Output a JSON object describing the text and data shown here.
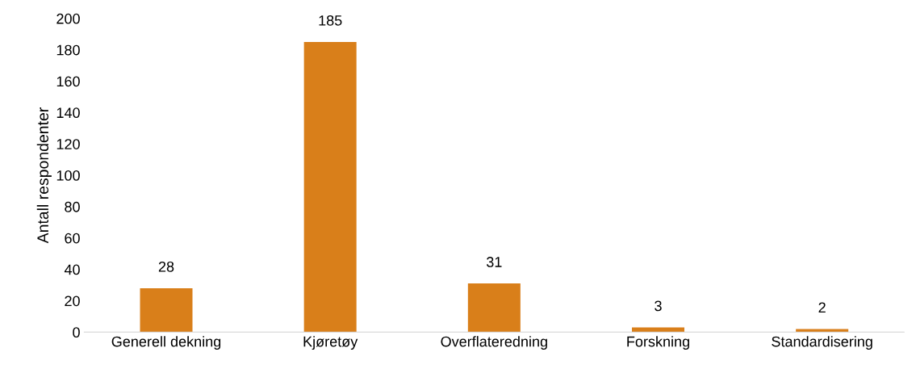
{
  "chart_data": {
    "type": "bar",
    "ylabel": "Antall respondenter",
    "categories": [
      "Generell dekning",
      "Kjøretøy",
      "Overflateredning",
      "Forskning",
      "Standardisering"
    ],
    "values": [
      28,
      185,
      31,
      3,
      2
    ],
    "color": "#d97f1a",
    "ylim": [
      0,
      200
    ],
    "yticks": [
      0,
      20,
      40,
      60,
      80,
      100,
      120,
      140,
      160,
      180,
      200
    ],
    "data_labels": true,
    "grid": false,
    "legend": false
  }
}
